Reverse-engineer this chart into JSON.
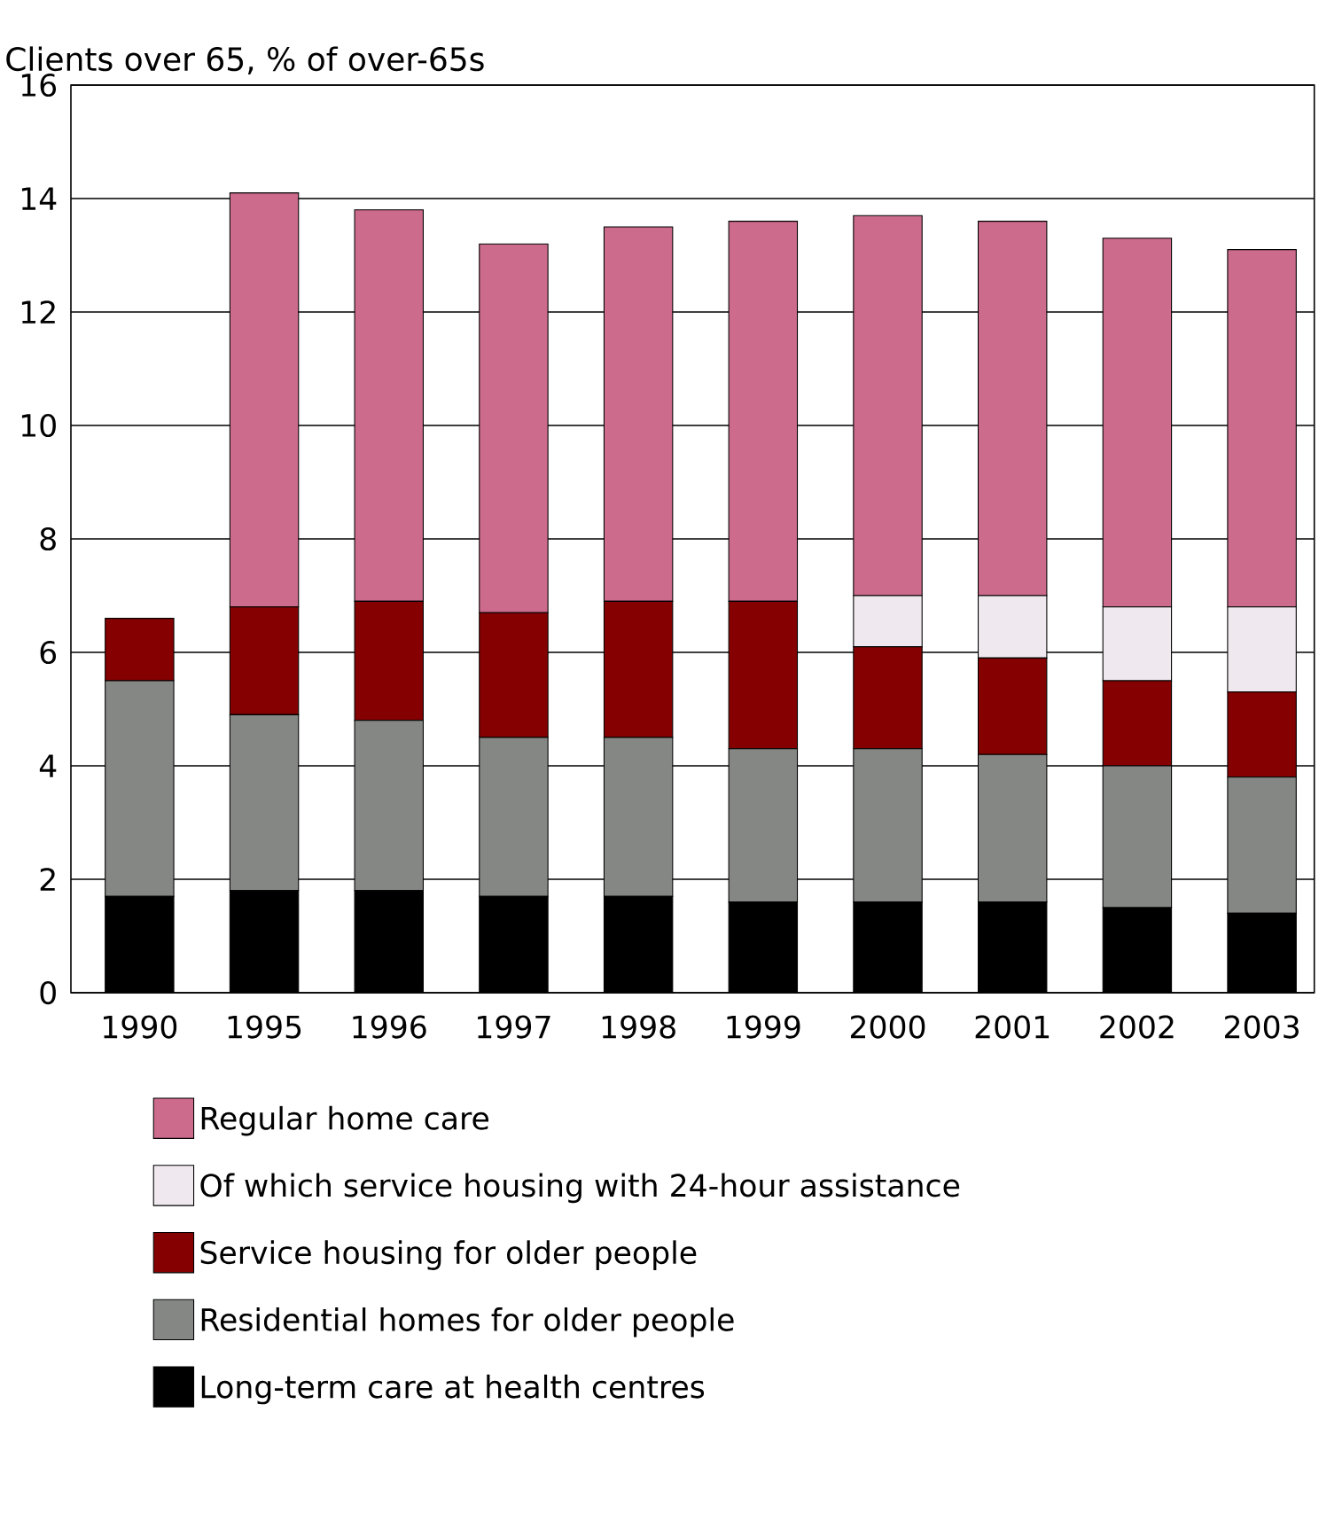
{
  "chart_data": {
    "type": "bar",
    "stacked": true,
    "ylabel": "Clients over 65, % of over-65s",
    "categories": [
      "1990",
      "1995",
      "1996",
      "1997",
      "1998",
      "1999",
      "2000",
      "2001",
      "2002",
      "2003"
    ],
    "series": [
      {
        "name": "Long-term care at health centres",
        "color": "#000000",
        "values": [
          1.7,
          1.8,
          1.8,
          1.7,
          1.7,
          1.6,
          1.6,
          1.6,
          1.5,
          1.4
        ]
      },
      {
        "name": "Residential homes for older people",
        "color": "#858784",
        "values": [
          3.8,
          3.1,
          3.0,
          2.8,
          2.8,
          2.7,
          2.7,
          2.6,
          2.5,
          2.4
        ]
      },
      {
        "name": "Service housing for older people",
        "color": "#850000",
        "values": [
          1.1,
          1.9,
          2.1,
          2.2,
          2.4,
          2.6,
          1.8,
          1.7,
          1.5,
          1.5
        ]
      },
      {
        "name": "Of which service housing with 24-hour assistance",
        "color": "#efe8ee",
        "values": [
          null,
          null,
          null,
          null,
          null,
          null,
          0.9,
          1.1,
          1.3,
          1.5
        ]
      },
      {
        "name": "Regular home care",
        "color": "#cc6b8c",
        "values": [
          null,
          7.3,
          6.9,
          6.5,
          6.6,
          6.7,
          6.7,
          6.6,
          6.5,
          6.3
        ]
      }
    ],
    "ylim": [
      0,
      16
    ],
    "yticks": [
      0,
      2,
      4,
      6,
      8,
      10,
      12,
      14,
      16
    ],
    "grid": "y",
    "legend": "bottom"
  }
}
